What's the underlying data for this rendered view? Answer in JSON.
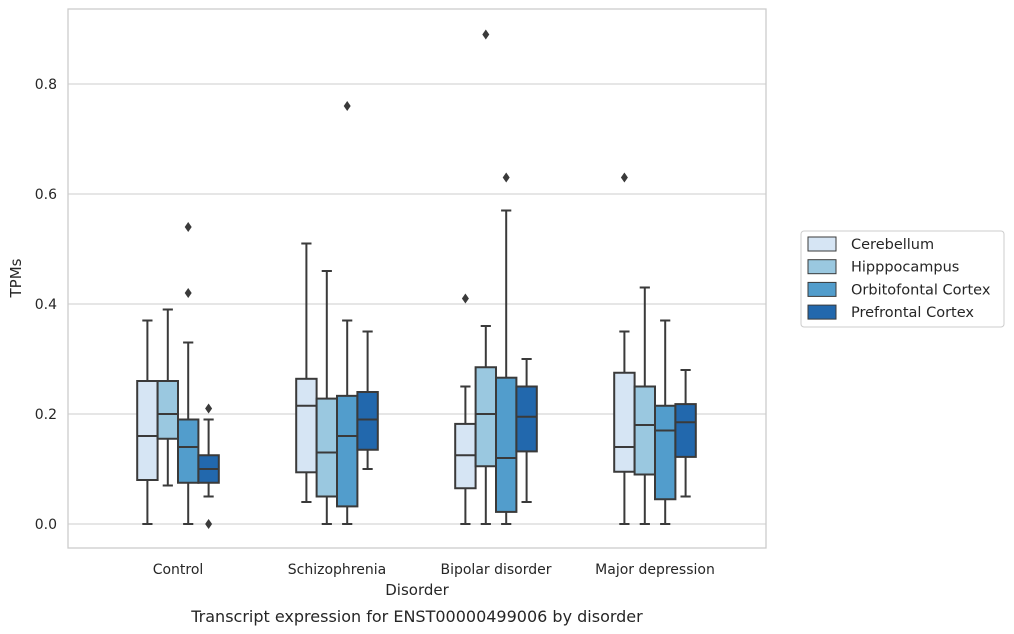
{
  "chart_data": {
    "type": "box",
    "xlabel": "Disorder",
    "ylabel": "TPMs",
    "caption": "Transcript expression for ENST00000499006 by disorder",
    "ylim": [
      -0.043,
      0.935
    ],
    "yticks": [
      "0.0",
      "0.2",
      "0.4",
      "0.6",
      "0.8"
    ],
    "ytick_values": [
      0.0,
      0.2,
      0.4,
      0.6,
      0.8
    ],
    "grid": "horizontal",
    "legend_position": "right",
    "categories": [
      "Control",
      "Schizophrenia",
      "Bipolar disorder",
      "Major depression"
    ],
    "series": [
      {
        "name": "Cerebellum",
        "color": "#d6e5f4",
        "boxes": [
          {
            "whisker_low": 0.0,
            "q1": 0.08,
            "median": 0.16,
            "q3": 0.26,
            "whisker_high": 0.37,
            "outliers": []
          },
          {
            "whisker_low": 0.04,
            "q1": 0.094,
            "median": 0.215,
            "q3": 0.264,
            "whisker_high": 0.51,
            "outliers": []
          },
          {
            "whisker_low": 0.0,
            "q1": 0.065,
            "median": 0.125,
            "q3": 0.182,
            "whisker_high": 0.25,
            "outliers": [
              0.41
            ]
          },
          {
            "whisker_low": 0.0,
            "q1": 0.095,
            "median": 0.14,
            "q3": 0.275,
            "whisker_high": 0.35,
            "outliers": [
              0.63
            ]
          }
        ]
      },
      {
        "name": "Hipppocampus",
        "color": "#9ac8e0",
        "boxes": [
          {
            "whisker_low": 0.07,
            "q1": 0.155,
            "median": 0.2,
            "q3": 0.26,
            "whisker_high": 0.39,
            "outliers": []
          },
          {
            "whisker_low": 0.0,
            "q1": 0.05,
            "median": 0.13,
            "q3": 0.228,
            "whisker_high": 0.46,
            "outliers": []
          },
          {
            "whisker_low": 0.0,
            "q1": 0.105,
            "median": 0.2,
            "q3": 0.285,
            "whisker_high": 0.36,
            "outliers": [
              0.89
            ]
          },
          {
            "whisker_low": 0.0,
            "q1": 0.09,
            "median": 0.18,
            "q3": 0.25,
            "whisker_high": 0.43,
            "outliers": []
          }
        ]
      },
      {
        "name": "Orbitofontal Cortex",
        "color": "#529dcc",
        "boxes": [
          {
            "whisker_low": 0.0,
            "q1": 0.075,
            "median": 0.14,
            "q3": 0.19,
            "whisker_high": 0.33,
            "outliers": [
              0.42,
              0.54
            ]
          },
          {
            "whisker_low": 0.0,
            "q1": 0.032,
            "median": 0.16,
            "q3": 0.233,
            "whisker_high": 0.37,
            "outliers": [
              0.76
            ]
          },
          {
            "whisker_low": 0.0,
            "q1": 0.022,
            "median": 0.12,
            "q3": 0.266,
            "whisker_high": 0.57,
            "outliers": [
              0.63
            ]
          },
          {
            "whisker_low": 0.0,
            "q1": 0.045,
            "median": 0.17,
            "q3": 0.215,
            "whisker_high": 0.37,
            "outliers": []
          }
        ]
      },
      {
        "name": "Prefrontal Cortex",
        "color": "#2268ad",
        "boxes": [
          {
            "whisker_low": 0.05,
            "q1": 0.075,
            "median": 0.1,
            "q3": 0.125,
            "whisker_high": 0.19,
            "outliers": [
              0.0,
              0.21
            ]
          },
          {
            "whisker_low": 0.1,
            "q1": 0.135,
            "median": 0.19,
            "q3": 0.24,
            "whisker_high": 0.35,
            "outliers": []
          },
          {
            "whisker_low": 0.04,
            "q1": 0.132,
            "median": 0.195,
            "q3": 0.25,
            "whisker_high": 0.3,
            "outliers": []
          },
          {
            "whisker_low": 0.05,
            "q1": 0.122,
            "median": 0.185,
            "q3": 0.218,
            "whisker_high": 0.28,
            "outliers": []
          }
        ]
      }
    ]
  }
}
